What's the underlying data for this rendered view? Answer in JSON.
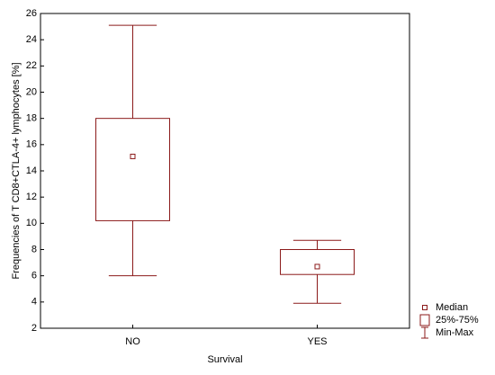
{
  "chart_data": {
    "type": "box",
    "y_label": "Frequencies of T CD8+CTLA-4+ lymphocytes [%]",
    "x_label": "Survival",
    "categories": [
      "NO",
      "YES"
    ],
    "boxes": [
      {
        "min": 6.0,
        "q1": 10.2,
        "median": 15.1,
        "q3": 18.0,
        "max": 25.1
      },
      {
        "min": 3.9,
        "q1": 6.1,
        "median": 6.7,
        "q3": 8.0,
        "max": 8.7
      }
    ],
    "color": "#8b1a1a",
    "ylim": [
      2,
      26
    ],
    "yticks": [
      2,
      4,
      6,
      8,
      10,
      12,
      14,
      16,
      18,
      20,
      22,
      24,
      26
    ],
    "grid": false,
    "legend": [
      "Median",
      "25%-75%",
      "Min-Max"
    ],
    "legend_position": "bottom-right"
  }
}
